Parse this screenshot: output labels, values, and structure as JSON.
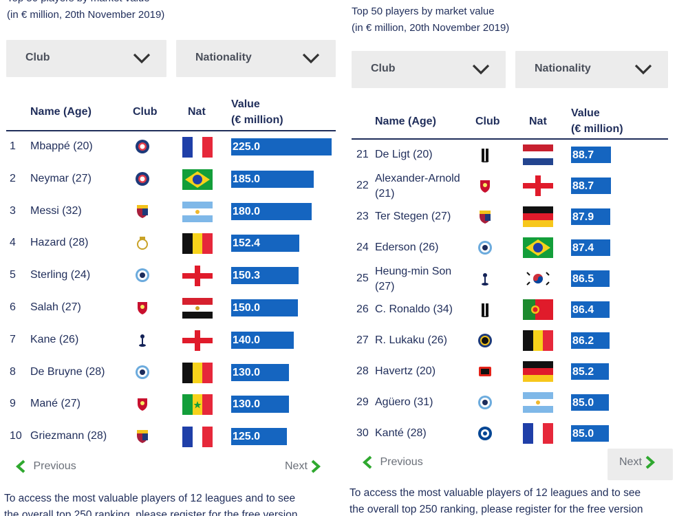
{
  "left_panel": {
    "title_partial": "Top 50 players by market value",
    "subtitle": "(in € million, 20th November 2019)",
    "filters": {
      "club_label": "Club",
      "nationality_label": "Nationality"
    },
    "headers": {
      "name": "Name (Age)",
      "club": "Club",
      "nat": "Nat",
      "value_line1": "Value",
      "value_line2": "(€ million)"
    },
    "max_value": 225.0,
    "rows": [
      {
        "rank": "1",
        "name": "Mbappé (20)",
        "club_icon": "psg-crest-icon",
        "flag": "france",
        "value": "225.0"
      },
      {
        "rank": "2",
        "name": "Neymar (27)",
        "club_icon": "psg-crest-icon",
        "flag": "brazil",
        "value": "185.0"
      },
      {
        "rank": "3",
        "name": "Messi (32)",
        "club_icon": "barcelona-crest-icon",
        "flag": "argentina",
        "value": "180.0"
      },
      {
        "rank": "4",
        "name": "Hazard (28)",
        "club_icon": "real-madrid-crest-icon",
        "flag": "belgium",
        "value": "152.4"
      },
      {
        "rank": "5",
        "name": "Sterling (24)",
        "club_icon": "man-city-crest-icon",
        "flag": "england",
        "value": "150.3"
      },
      {
        "rank": "6",
        "name": "Salah (27)",
        "club_icon": "liverpool-crest-icon",
        "flag": "egypt",
        "value": "150.0"
      },
      {
        "rank": "7",
        "name": "Kane (26)",
        "club_icon": "tottenham-crest-icon",
        "flag": "england",
        "value": "140.0"
      },
      {
        "rank": "8",
        "name": "De Bruyne (28)",
        "club_icon": "man-city-crest-icon",
        "flag": "belgium",
        "value": "130.0"
      },
      {
        "rank": "9",
        "name": "Mané (27)",
        "club_icon": "liverpool-crest-icon",
        "flag": "senegal",
        "value": "130.0"
      },
      {
        "rank": "10",
        "name": "Griezmann (28)",
        "club_icon": "barcelona-crest-icon",
        "flag": "france",
        "value": "125.0"
      }
    ],
    "previous_label": "Previous",
    "next_label": "Next",
    "footnote_line1": "To access the most valuable players of 12 leagues and to see",
    "footnote_line2": "the overall top 250 ranking, please register for the free version"
  },
  "right_panel": {
    "title": "Top 50 players by market value",
    "subtitle": "(in € million, 20th November 2019)",
    "filters": {
      "club_label": "Club",
      "nationality_label": "Nationality"
    },
    "headers": {
      "name": "Name (Age)",
      "club": "Club",
      "nat": "Nat",
      "value_line1": "Value",
      "value_line2": "(€ million)"
    },
    "max_value": 225.0,
    "rows": [
      {
        "rank": "21",
        "name_line1": "De Ligt (20)",
        "name_line2": "",
        "club_icon": "juventus-crest-icon",
        "flag": "netherlands",
        "value": "88.7"
      },
      {
        "rank": "22",
        "name_line1": "Alexander-Arnold",
        "name_line2": "(21)",
        "club_icon": "liverpool-crest-icon",
        "flag": "england",
        "value": "88.7"
      },
      {
        "rank": "23",
        "name_line1": "Ter Stegen (27)",
        "name_line2": "",
        "club_icon": "barcelona-crest-icon",
        "flag": "germany",
        "value": "87.9"
      },
      {
        "rank": "24",
        "name_line1": "Ederson (26)",
        "name_line2": "",
        "club_icon": "man-city-crest-icon",
        "flag": "brazil",
        "value": "87.4"
      },
      {
        "rank": "25",
        "name_line1": "Heung-min Son",
        "name_line2": "(27)",
        "club_icon": "tottenham-crest-icon",
        "flag": "south-korea",
        "value": "86.5"
      },
      {
        "rank": "26",
        "name_line1": "C. Ronaldo (34)",
        "name_line2": "",
        "club_icon": "juventus-crest-icon",
        "flag": "portugal",
        "value": "86.4"
      },
      {
        "rank": "27",
        "name_line1": "R. Lukaku (26)",
        "name_line2": "",
        "club_icon": "inter-crest-icon",
        "flag": "belgium",
        "value": "86.2"
      },
      {
        "rank": "28",
        "name_line1": "Havertz (20)",
        "name_line2": "",
        "club_icon": "leverkusen-crest-icon",
        "flag": "germany",
        "value": "85.2"
      },
      {
        "rank": "29",
        "name_line1": "Agüero (31)",
        "name_line2": "",
        "club_icon": "man-city-crest-icon",
        "flag": "argentina",
        "value": "85.0"
      },
      {
        "rank": "30",
        "name_line1": "Kanté (28)",
        "name_line2": "",
        "club_icon": "chelsea-crest-icon",
        "flag": "france",
        "value": "85.0"
      }
    ],
    "previous_label": "Previous",
    "next_label": "Next",
    "footnote_line1": "To access the most valuable players of 12 leagues and to see",
    "footnote_line2": "the overall top 250 ranking, please register for the free version"
  },
  "colors": {
    "bar": "#1565c0",
    "text": "#1f2d5a",
    "dropdown_bg": "#ececec",
    "pager_arrow": "#2fa82f"
  }
}
